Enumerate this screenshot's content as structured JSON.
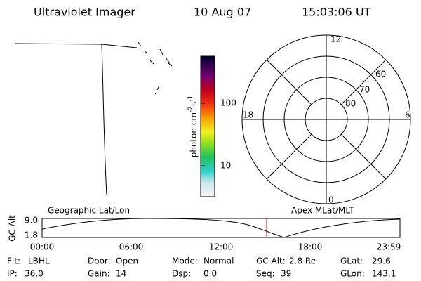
{
  "header": {
    "title": "Ultraviolet Imager",
    "date": "10 Aug 07",
    "time": "15:03:06 UT"
  },
  "colorbar": {
    "label": [
      "photon cm",
      "-2",
      "s",
      "-1"
    ],
    "ticks": [
      "100",
      "10"
    ]
  },
  "polar": {
    "lat_labels": [
      "80",
      "70",
      "60"
    ],
    "mlt_labels": [
      "12",
      "18",
      "6",
      "0"
    ]
  },
  "altitude": {
    "ylabel": "GC Alt",
    "yticks": [
      "9.0",
      "1.8"
    ],
    "left_label": "Geographic Lat/Lon",
    "right_label": "Apex MLat/MLT",
    "xticks": [
      "00:00",
      "06:00",
      "12:00",
      "18:00",
      "23:59"
    ]
  },
  "footer": {
    "rows": [
      [
        [
          "Flt:",
          "LBHL"
        ],
        [
          "Door:",
          "Open"
        ],
        [
          "Mode:",
          "Normal"
        ],
        [
          "GC Alt:",
          "2.8 Re"
        ],
        [
          "GLat:",
          "29.6"
        ]
      ],
      [
        [
          "IP:",
          "36.0"
        ],
        [
          "Gain:",
          "14"
        ],
        [
          "Dsp:",
          "0.0"
        ],
        [
          "Seq:",
          "39"
        ],
        [
          "GLon:",
          "143.1"
        ]
      ]
    ]
  }
}
